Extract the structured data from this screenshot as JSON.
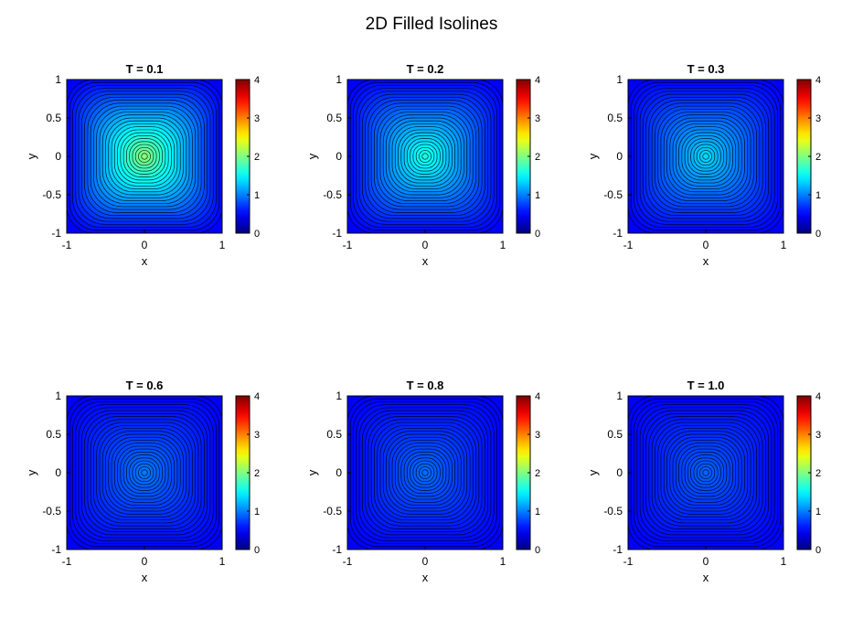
{
  "figure": {
    "title": "2D Filled Isolines"
  },
  "chart_data": [
    {
      "type": "heatmap",
      "title": "T = 0.1",
      "xlabel": "x",
      "ylabel": "y",
      "xlim": [
        -1,
        1
      ],
      "ylim": [
        -1,
        1
      ],
      "x_ticks": [
        "-1",
        "0",
        "1"
      ],
      "y_ticks": [
        "1",
        "0.5",
        "0",
        "-0.5",
        "-1"
      ],
      "colorbar": {
        "ticks": [
          "4",
          "3",
          "2",
          "1",
          "0"
        ],
        "range": [
          0,
          4
        ],
        "colormap": "jet"
      },
      "peak_value_at_origin": 1.8,
      "contour_lines": true
    },
    {
      "type": "heatmap",
      "title": "T = 0.2",
      "xlabel": "x",
      "ylabel": "y",
      "xlim": [
        -1,
        1
      ],
      "ylim": [
        -1,
        1
      ],
      "x_ticks": [
        "-1",
        "0",
        "1"
      ],
      "y_ticks": [
        "1",
        "0.5",
        "0",
        "-0.5",
        "-1"
      ],
      "colorbar": {
        "ticks": [
          "4",
          "3",
          "2",
          "1",
          "0"
        ],
        "range": [
          0,
          4
        ],
        "colormap": "jet"
      },
      "peak_value_at_origin": 1.3,
      "contour_lines": true
    },
    {
      "type": "heatmap",
      "title": "T = 0.3",
      "xlabel": "x",
      "ylabel": "y",
      "xlim": [
        -1,
        1
      ],
      "ylim": [
        -1,
        1
      ],
      "x_ticks": [
        "-1",
        "0",
        "1"
      ],
      "y_ticks": [
        "1",
        "0.5",
        "0",
        "-0.5",
        "-1"
      ],
      "colorbar": {
        "ticks": [
          "4",
          "3",
          "2",
          "1",
          "0"
        ],
        "range": [
          0,
          4
        ],
        "colormap": "jet"
      },
      "peak_value_at_origin": 1.0,
      "contour_lines": true
    },
    {
      "type": "heatmap",
      "title": "T = 0.6",
      "xlabel": "x",
      "ylabel": "y",
      "xlim": [
        -1,
        1
      ],
      "ylim": [
        -1,
        1
      ],
      "x_ticks": [
        "-1",
        "0",
        "1"
      ],
      "y_ticks": [
        "1",
        "0.5",
        "0",
        "-0.5",
        "-1"
      ],
      "colorbar": {
        "ticks": [
          "4",
          "3",
          "2",
          "1",
          "0"
        ],
        "range": [
          0,
          4
        ],
        "colormap": "jet"
      },
      "peak_value_at_origin": 0.55,
      "contour_lines": true
    },
    {
      "type": "heatmap",
      "title": "T = 0.8",
      "xlabel": "x",
      "ylabel": "y",
      "xlim": [
        -1,
        1
      ],
      "ylim": [
        -1,
        1
      ],
      "x_ticks": [
        "-1",
        "0",
        "1"
      ],
      "y_ticks": [
        "1",
        "0.5",
        "0",
        "-0.5",
        "-1"
      ],
      "colorbar": {
        "ticks": [
          "4",
          "3",
          "2",
          "1",
          "0"
        ],
        "range": [
          0,
          4
        ],
        "colormap": "jet"
      },
      "peak_value_at_origin": 0.5,
      "contour_lines": true
    },
    {
      "type": "heatmap",
      "title": "T = 1.0",
      "xlabel": "x",
      "ylabel": "y",
      "xlim": [
        -1,
        1
      ],
      "ylim": [
        -1,
        1
      ],
      "x_ticks": [
        "-1",
        "0",
        "1"
      ],
      "y_ticks": [
        "1",
        "0.5",
        "0",
        "-0.5",
        "-1"
      ],
      "colorbar": {
        "ticks": [
          "4",
          "3",
          "2",
          "1",
          "0"
        ],
        "range": [
          0,
          4
        ],
        "colormap": "jet"
      },
      "peak_value_at_origin": 0.45,
      "contour_lines": true
    }
  ]
}
